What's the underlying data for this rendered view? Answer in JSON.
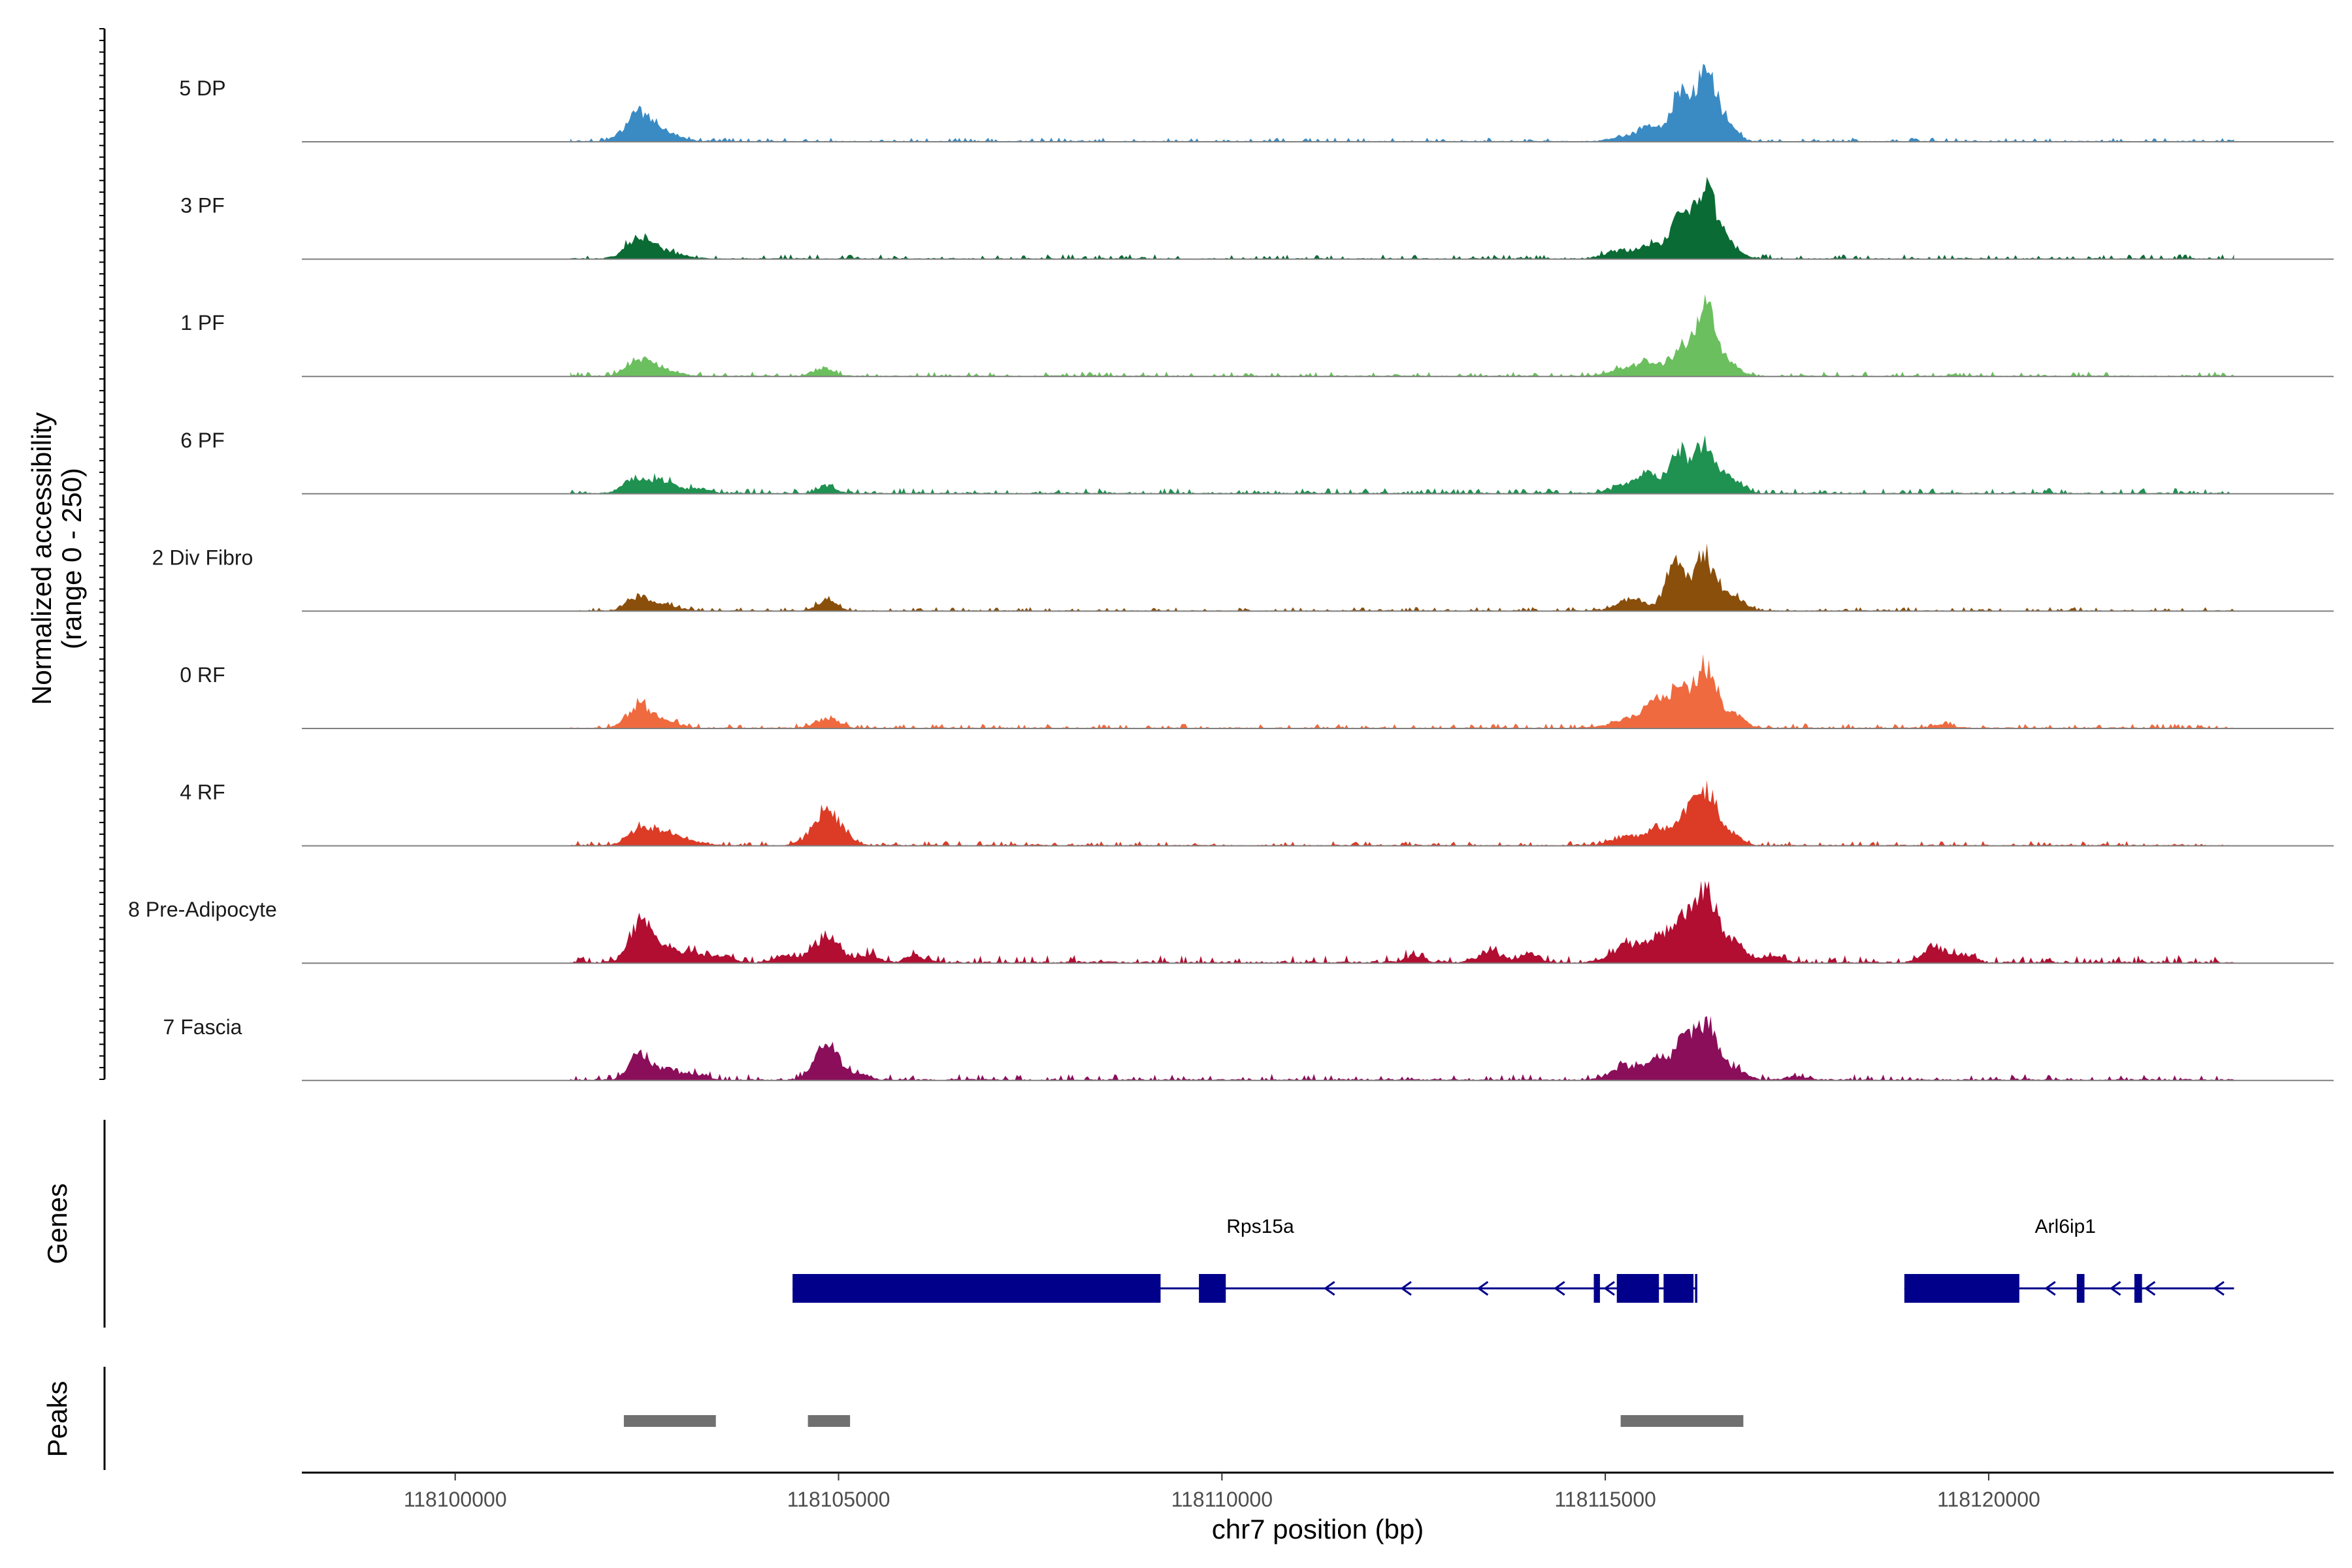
{
  "chart_data": {
    "type": "area",
    "subtype": "genome-coverage-track",
    "chromosome": "chr7",
    "xlim": [
      118098000,
      118124500
    ],
    "x_ticks": [
      118100000,
      118105000,
      118110000,
      118115000,
      118120000
    ],
    "x_tick_labels": [
      "118100000",
      "118105000",
      "118110000",
      "118115000",
      "118120000"
    ],
    "xlabel": "chr7 position (bp)",
    "ylabel": "Normalized accessibility",
    "ylabel_range": "(range 0 - 250)",
    "ylim": [
      0,
      250
    ],
    "panel_labels": {
      "genes": "Genes",
      "peaks": "Peaks"
    },
    "tracks": [
      {
        "name": "5 DP",
        "color": "#3A8BC4",
        "noise": 2.5,
        "peaks": [
          [
            118102400,
            180,
            40
          ],
          [
            118102750,
            200,
            10
          ],
          [
            118115300,
            200,
            8
          ],
          [
            118115600,
            130,
            22
          ],
          [
            118115950,
            110,
            65
          ],
          [
            118116300,
            160,
            100
          ],
          [
            118116600,
            130,
            18
          ]
        ]
      },
      {
        "name": "3 PF",
        "color": "#0B6B35",
        "noise": 3.0,
        "peaks": [
          [
            118102400,
            170,
            30
          ],
          [
            118102750,
            200,
            10
          ],
          [
            118115200,
            200,
            12
          ],
          [
            118115600,
            130,
            20
          ],
          [
            118115950,
            110,
            62
          ],
          [
            118116300,
            160,
            108
          ],
          [
            118116650,
            130,
            14
          ]
        ]
      },
      {
        "name": "1 PF",
        "color": "#6BBF5E",
        "noise": 3.0,
        "peaks": [
          [
            118102400,
            160,
            25
          ],
          [
            118102750,
            180,
            8
          ],
          [
            118104800,
            120,
            12
          ],
          [
            118115300,
            200,
            12
          ],
          [
            118115600,
            130,
            18
          ],
          [
            118115950,
            110,
            35
          ],
          [
            118116300,
            150,
            102
          ],
          [
            118116650,
            130,
            14
          ]
        ]
      },
      {
        "name": "6 PF",
        "color": "#1F9150",
        "noise": 3.5,
        "peaks": [
          [
            118102350,
            150,
            22
          ],
          [
            118102700,
            150,
            18
          ],
          [
            118103150,
            150,
            8
          ],
          [
            118104850,
            110,
            12
          ],
          [
            118115300,
            200,
            14
          ],
          [
            118115600,
            130,
            25
          ],
          [
            118115950,
            110,
            62
          ],
          [
            118116300,
            150,
            75
          ],
          [
            118116650,
            130,
            18
          ]
        ]
      },
      {
        "name": "2 Div Fibro",
        "color": "#8B4F0C",
        "noise": 2.5,
        "peaks": [
          [
            118102400,
            150,
            22
          ],
          [
            118102750,
            170,
            8
          ],
          [
            118104850,
            120,
            18
          ],
          [
            118115350,
            180,
            18
          ],
          [
            118115900,
            110,
            80
          ],
          [
            118116300,
            150,
            82
          ],
          [
            118116700,
            130,
            18
          ]
        ]
      },
      {
        "name": "0 RF",
        "color": "#EF6A3F",
        "noise": 3.0,
        "peaks": [
          [
            118102400,
            150,
            35
          ],
          [
            118102750,
            180,
            10
          ],
          [
            118104850,
            150,
            14
          ],
          [
            118115300,
            200,
            15
          ],
          [
            118115650,
            130,
            40
          ],
          [
            118115950,
            110,
            60
          ],
          [
            118116300,
            150,
            92
          ],
          [
            118116700,
            130,
            18
          ],
          [
            118119400,
            120,
            6
          ]
        ]
      },
      {
        "name": "4 RF",
        "color": "#DC3B26",
        "noise": 3.0,
        "peaks": [
          [
            118102400,
            150,
            25
          ],
          [
            118102750,
            150,
            20
          ],
          [
            118103100,
            150,
            6
          ],
          [
            118104850,
            180,
            55
          ],
          [
            118115300,
            200,
            14
          ],
          [
            118115700,
            130,
            25
          ],
          [
            118116000,
            110,
            35
          ],
          [
            118116300,
            150,
            88
          ],
          [
            118116650,
            130,
            14
          ]
        ]
      },
      {
        "name": "8 Pre-Adipocyte",
        "color": "#B10E32",
        "noise": 5.0,
        "clusters": true,
        "peaks": [
          [
            118102400,
            130,
            60
          ],
          [
            118102700,
            150,
            28
          ],
          [
            118103100,
            150,
            15
          ],
          [
            118103500,
            120,
            10
          ],
          [
            118104300,
            120,
            12
          ],
          [
            118104850,
            170,
            40
          ],
          [
            118105400,
            120,
            12
          ],
          [
            118106000,
            120,
            8
          ],
          [
            118112500,
            120,
            10
          ],
          [
            118113500,
            150,
            16
          ],
          [
            118114000,
            120,
            14
          ],
          [
            118115300,
            200,
            26
          ],
          [
            118115700,
            140,
            38
          ],
          [
            118116000,
            110,
            55
          ],
          [
            118116300,
            150,
            118
          ],
          [
            118116700,
            150,
            28
          ],
          [
            118117200,
            120,
            10
          ],
          [
            118119300,
            150,
            25
          ],
          [
            118119700,
            120,
            12
          ]
        ]
      },
      {
        "name": "7 Fascia",
        "color": "#8B0E5A",
        "noise": 4.0,
        "peaks": [
          [
            118102400,
            130,
            40
          ],
          [
            118102750,
            150,
            18
          ],
          [
            118103150,
            150,
            8
          ],
          [
            118104850,
            160,
            52
          ],
          [
            118105300,
            120,
            8
          ],
          [
            118115300,
            200,
            22
          ],
          [
            118115700,
            130,
            30
          ],
          [
            118116000,
            110,
            52
          ],
          [
            118116300,
            150,
            90
          ],
          [
            118116700,
            130,
            16
          ],
          [
            118117500,
            120,
            6
          ]
        ]
      }
    ],
    "genes": [
      {
        "name": "Rps15a",
        "strand": "-",
        "start": 118104400,
        "end": 118116200,
        "label_at": 118110500,
        "exons": [
          [
            118104400,
            118109200
          ],
          [
            118109700,
            118110050
          ],
          [
            118114850,
            118114930
          ],
          [
            118115150,
            118115700
          ],
          [
            118115760,
            118116150
          ],
          [
            118116170,
            118116200
          ]
        ],
        "arrows": [
          118111400,
          118112400,
          118113400,
          118114400,
          118115050,
          118109850
        ]
      },
      {
        "name": "Arl6ip1",
        "strand": "-",
        "start": 118118900,
        "end": 118123200,
        "label_at": 118121000,
        "exons": [
          [
            118118900,
            118120400
          ],
          [
            118121150,
            118121250
          ],
          [
            118121900,
            118122000
          ]
        ],
        "arrows": [
          118120800,
          118121650,
          118122100,
          118123000
        ]
      }
    ],
    "peak_regions": [
      [
        118102200,
        118103400
      ],
      [
        118104600,
        118105150
      ],
      [
        118115200,
        118116800
      ]
    ]
  }
}
